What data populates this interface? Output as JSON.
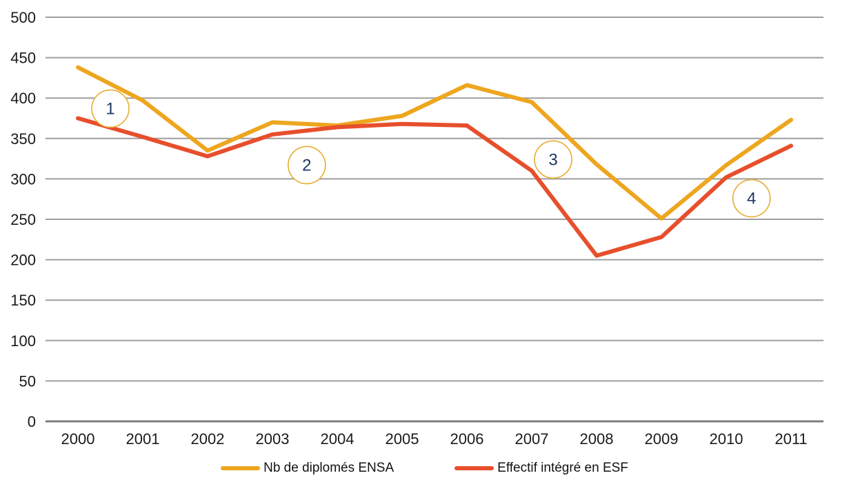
{
  "chart_data": {
    "type": "line",
    "title": "",
    "xlabel": "",
    "ylabel": "",
    "categories": [
      "2000",
      "2001",
      "2002",
      "2003",
      "2004",
      "2005",
      "2006",
      "2007",
      "2008",
      "2009",
      "2010",
      "2011"
    ],
    "series": [
      {
        "name": "Nb de diplomés ENSA",
        "color": "#EDA61E",
        "values": [
          438,
          397,
          335,
          370,
          366,
          378,
          416,
          395,
          318,
          251,
          317,
          373
        ]
      },
      {
        "name": "Effectif intégré en ESF",
        "color": "#E74F2C",
        "values": [
          375,
          352,
          328,
          355,
          364,
          368,
          366,
          310,
          205,
          228,
          302,
          341
        ]
      }
    ],
    "ylim": [
      0,
      500
    ],
    "ytick_step": 50,
    "ytick_labels": [
      "0",
      "50",
      "100",
      "150",
      "200",
      "250",
      "300",
      "350",
      "400",
      "450",
      "500"
    ],
    "grid": "horizontal",
    "legend_position": "bottom",
    "annotations": [
      {
        "label": "1",
        "x_index": 0.5,
        "value": 387
      },
      {
        "label": "2",
        "x_index": 3.53,
        "value": 317
      },
      {
        "label": "3",
        "x_index": 7.33,
        "value": 324
      },
      {
        "label": "4",
        "x_index": 10.39,
        "value": 276
      }
    ],
    "colors": {
      "gridline": "#9E9E9E",
      "axis_line": "#7D7D7D",
      "tick_text": "#1A1A1A",
      "annotation_circle": "#E8AB30",
      "annotation_text": "#1F3864",
      "background": "#FFFFFF"
    }
  }
}
